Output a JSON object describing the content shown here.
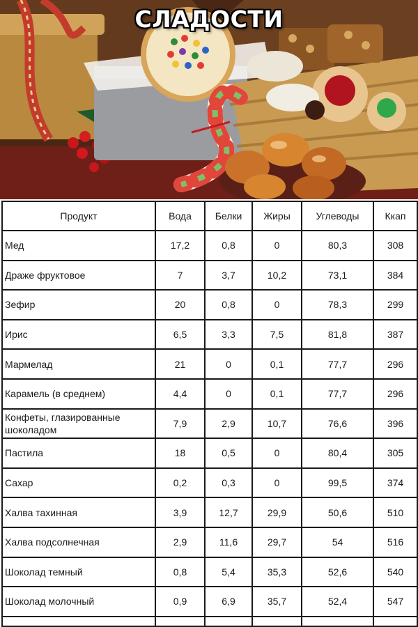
{
  "header": {
    "title": "СЛАДОСТИ"
  },
  "colors": {
    "table_border": "#1a1a1a",
    "title_fill": "#ffffff",
    "title_outline": "#000000"
  },
  "table": {
    "columns": [
      "Продукт",
      "Вода",
      "Белки",
      "Жиры",
      "Углеводы",
      "Ккап"
    ],
    "rows": [
      [
        "Мед",
        "17,2",
        "0,8",
        "0",
        "80,3",
        "308"
      ],
      [
        "Драже фруктовое",
        "7",
        "3,7",
        "10,2",
        "73,1",
        "384"
      ],
      [
        "Зефир",
        "20",
        "0,8",
        "0",
        "78,3",
        "299"
      ],
      [
        "Ирис",
        "6,5",
        "3,3",
        "7,5",
        "81,8",
        "387"
      ],
      [
        "Мармелад",
        "21",
        "0",
        "0,1",
        "77,7",
        "296"
      ],
      [
        "Карамель (в среднем)",
        "4,4",
        "0",
        "0,1",
        "77,7",
        "296"
      ],
      [
        "Конфеты, глазированные шоколадом",
        "7,9",
        "2,9",
        "10,7",
        "76,6",
        "396"
      ],
      [
        "Пастила",
        "18",
        "0,5",
        "0",
        "80,4",
        "305"
      ],
      [
        "Сахар",
        "0,2",
        "0,3",
        "0",
        "99,5",
        "374"
      ],
      [
        "Халва тахинная",
        "3,9",
        "12,7",
        "29,9",
        "50,6",
        "510"
      ],
      [
        "Халва подсолнечная",
        "2,9",
        "11,6",
        "29,7",
        "54",
        "516"
      ],
      [
        "Шоколад темный",
        "0,8",
        "5,4",
        "35,3",
        "52,6",
        "540"
      ],
      [
        "Шоколад молочный",
        "0,9",
        "6,9",
        "35,7",
        "52,4",
        "547"
      ]
    ]
  }
}
